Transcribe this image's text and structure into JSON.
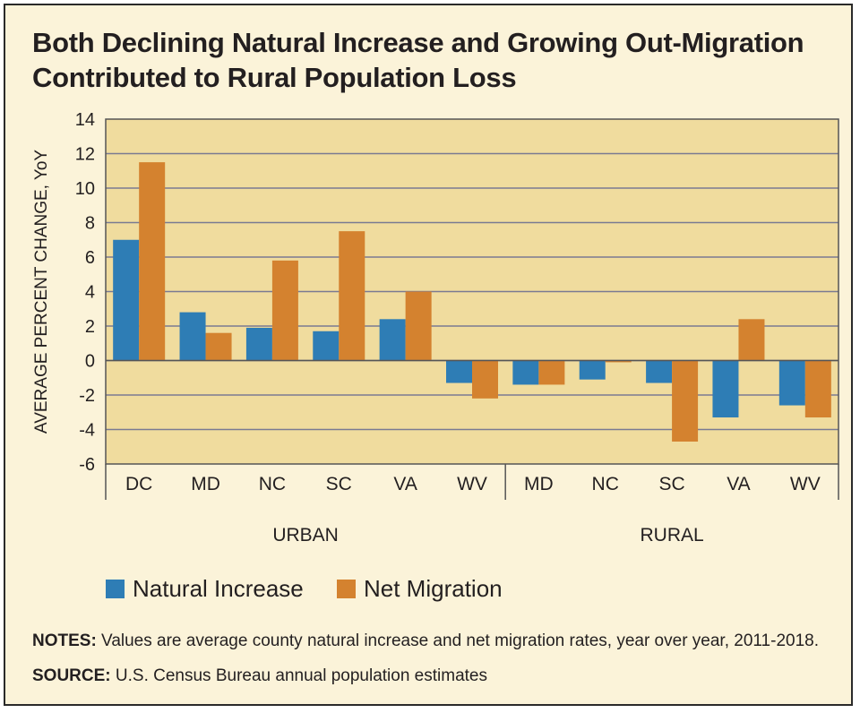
{
  "title_lines": [
    "Both Declining Natural Increase and Growing Out-Migration",
    "Contributed to Rural Population Loss"
  ],
  "colors": {
    "natural_increase": "#2e7db5",
    "net_migration": "#d4822f",
    "plot_bg": "#f0dc9e",
    "grid": "#7a7a92",
    "background": "#fbf3d9"
  },
  "chart_data": {
    "type": "bar",
    "ylabel": "AVERAGE PERCENT CHANGE, YoY",
    "ylim": [
      -6,
      14
    ],
    "yticks": [
      -6,
      -4,
      -2,
      0,
      2,
      4,
      6,
      8,
      10,
      12,
      14
    ],
    "grid": true,
    "groups": [
      {
        "label": "URBAN",
        "categories": [
          "DC",
          "MD",
          "NC",
          "SC",
          "VA",
          "WV"
        ]
      },
      {
        "label": "RURAL",
        "categories": [
          "MD",
          "NC",
          "SC",
          "VA",
          "WV"
        ]
      }
    ],
    "categories": [
      "DC",
      "MD",
      "NC",
      "SC",
      "VA",
      "WV",
      "MD",
      "NC",
      "SC",
      "VA",
      "WV"
    ],
    "series": [
      {
        "name": "Natural Increase",
        "values": [
          7.0,
          2.8,
          1.9,
          1.7,
          2.4,
          -1.3,
          -1.4,
          -1.1,
          -1.3,
          -3.3,
          -2.6
        ]
      },
      {
        "name": "Net Migration",
        "values": [
          11.5,
          1.6,
          5.8,
          7.5,
          4.0,
          -2.2,
          -1.4,
          -0.1,
          -4.7,
          2.4,
          -3.3
        ]
      }
    ],
    "legend_position": "bottom-left"
  },
  "notes": {
    "notes_label": "NOTES:",
    "notes_text": " Values are average county natural increase and net migration rates, year over year, 2011-2018.",
    "source_label": "SOURCE:",
    "source_text": " U.S. Census Bureau annual population estimates"
  }
}
